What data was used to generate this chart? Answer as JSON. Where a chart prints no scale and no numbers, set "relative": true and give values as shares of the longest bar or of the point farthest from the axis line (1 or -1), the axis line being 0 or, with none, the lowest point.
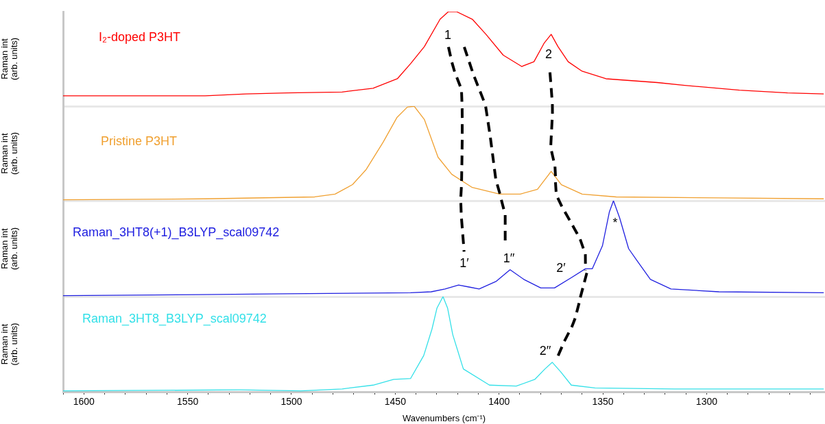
{
  "chart_data": [
    {
      "type": "line",
      "relative": true,
      "xlim": [
        1610,
        1243
      ],
      "ylabel": "Raman int (arb. units)",
      "tick_labels": false,
      "x": [
        1610,
        1541.6,
        1521.8,
        1502,
        1475.6,
        1460.7,
        1449,
        1442.6,
        1436,
        1428.4,
        1424.4,
        1420.5,
        1412.9,
        1406.3,
        1398,
        1389.1,
        1383.2,
        1378.2,
        1374.9,
        1371.6,
        1366.7,
        1360,
        1348.5,
        1323.8,
        1310.6,
        1284.2,
        1261,
        1243.6
      ],
      "series": [
        {
          "name": "I₂-doped P3HT",
          "color": "#ff0000",
          "values": [
            0.11,
            0.11,
            0.13,
            0.14,
            0.15,
            0.19,
            0.29,
            0.45,
            0.63,
            0.92,
            1.0,
            1.0,
            0.92,
            0.76,
            0.54,
            0.42,
            0.47,
            0.67,
            0.76,
            0.63,
            0.47,
            0.37,
            0.29,
            0.25,
            0.22,
            0.17,
            0.14,
            0.13
          ]
        }
      ],
      "annotations": [
        "1",
        "2"
      ]
    },
    {
      "type": "line",
      "relative": true,
      "xlim": [
        1610,
        1243
      ],
      "ylabel": "Raman int (arb. units)",
      "tick_labels": false,
      "x": [
        1610,
        1541.6,
        1488.8,
        1479,
        1470.6,
        1464,
        1455.8,
        1449.2,
        1444.2,
        1440.9,
        1436,
        1429.4,
        1422.8,
        1412.9,
        1399.7,
        1389.8,
        1381.5,
        1374.9,
        1370,
        1360,
        1343.6,
        1294.1,
        1243.6
      ],
      "series": [
        {
          "name": "Pristine P3HT",
          "color": "#f0a030",
          "values": [
            0.01,
            0.02,
            0.04,
            0.07,
            0.17,
            0.33,
            0.62,
            0.88,
            0.99,
            1.0,
            0.86,
            0.46,
            0.28,
            0.14,
            0.07,
            0.07,
            0.12,
            0.31,
            0.17,
            0.07,
            0.04,
            0.03,
            0.02
          ]
        }
      ]
    },
    {
      "type": "line",
      "relative": true,
      "xlim": [
        1610,
        1243
      ],
      "ylabel": "Raman int (arb. units)",
      "tick_labels": false,
      "x": [
        1610,
        1544.9,
        1502,
        1442.6,
        1432.7,
        1426,
        1419.5,
        1414.5,
        1409.6,
        1401.3,
        1394.7,
        1388.1,
        1379.9,
        1373.3,
        1365,
        1358.4,
        1355.1,
        1350.2,
        1346.9,
        1344.9,
        1341.9,
        1337.6,
        1333.7,
        1327.1,
        1317.2,
        1294.1,
        1243.6
      ],
      "series": [
        {
          "name": "Raman_3HT8(+1)_B3LYP_scal09742",
          "color": "#2020e0",
          "values": [
            0.01,
            0.02,
            0.03,
            0.04,
            0.05,
            0.08,
            0.12,
            0.1,
            0.08,
            0.16,
            0.28,
            0.18,
            0.09,
            0.09,
            0.2,
            0.29,
            0.29,
            0.53,
            0.88,
            1.0,
            0.82,
            0.5,
            0.38,
            0.18,
            0.08,
            0.05,
            0.04
          ]
        }
      ],
      "annotations": [
        "1′",
        "1′′",
        "2′",
        "*"
      ]
    },
    {
      "type": "line",
      "relative": true,
      "xlim": [
        1610,
        1243
      ],
      "ylabel": "Raman int (arb. units)",
      "xlabel": "Wavenumbers (cm⁻¹)",
      "tick_labels": "x",
      "xticks": [
        {
          "value": 1610,
          "label": null
        },
        1600,
        {
          "value": 1590,
          "label": null
        },
        {
          "value": 1580,
          "label": null
        },
        {
          "value": 1570,
          "label": null
        },
        {
          "value": 1560,
          "label": null
        },
        1550,
        {
          "value": 1540,
          "label": null
        },
        {
          "value": 1530,
          "label": null
        },
        {
          "value": 1520,
          "label": null
        },
        {
          "value": 1510,
          "label": null
        },
        1500,
        {
          "value": 1490,
          "label": null
        },
        {
          "value": 1480,
          "label": null
        },
        {
          "value": 1470,
          "label": null
        },
        {
          "value": 1460,
          "label": null
        },
        1450,
        {
          "value": 1440,
          "label": null
        },
        {
          "value": 1430,
          "label": null
        },
        {
          "value": 1420,
          "label": null
        },
        {
          "value": 1410,
          "label": null
        },
        1400,
        {
          "value": 1390,
          "label": null
        },
        {
          "value": 1380,
          "label": null
        },
        {
          "value": 1370,
          "label": null
        },
        {
          "value": 1360,
          "label": null
        },
        1350,
        {
          "value": 1340,
          "label": null
        },
        {
          "value": 1330,
          "label": null
        },
        {
          "value": 1320,
          "label": null
        },
        {
          "value": 1310,
          "label": null
        },
        1300,
        {
          "value": 1290,
          "label": null
        },
        {
          "value": 1280,
          "label": null
        },
        {
          "value": 1270,
          "label": null
        },
        {
          "value": 1260,
          "label": null
        },
        {
          "value": 1250,
          "label": null
        }
      ],
      "x": [
        1610,
        1525,
        1495.4,
        1475.6,
        1460.7,
        1450.8,
        1442.6,
        1436.3,
        1432.3,
        1429.9,
        1427,
        1424.8,
        1422.3,
        1417.2,
        1404.6,
        1391.7,
        1382.8,
        1377.9,
        1374.4,
        1370.3,
        1365.2,
        1353.8,
        1315.5,
        1243.6
      ],
      "series": [
        {
          "name": "Raman_3HT8_B3LYP_scal09742",
          "color": "#33e0e8",
          "values": [
            0.01,
            0.02,
            0.01,
            0.03,
            0.07,
            0.13,
            0.14,
            0.38,
            0.66,
            0.88,
            1.0,
            0.88,
            0.6,
            0.24,
            0.07,
            0.06,
            0.13,
            0.24,
            0.31,
            0.21,
            0.07,
            0.04,
            0.03,
            0.03
          ]
        }
      ],
      "annotations": [
        "2′′"
      ]
    }
  ]
}
